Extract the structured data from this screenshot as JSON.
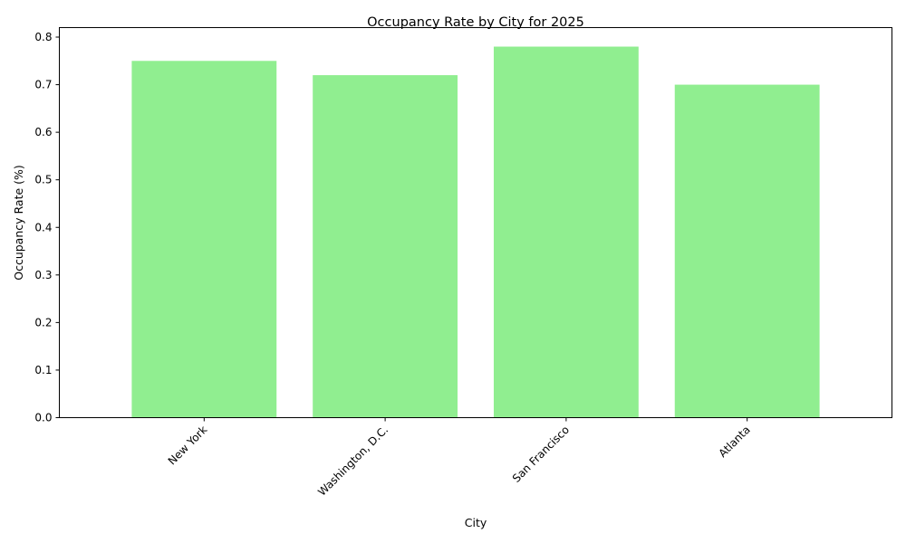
{
  "chart_data": {
    "type": "bar",
    "title": "Occupancy Rate by City for 2025",
    "xlabel": "City",
    "ylabel": "Occupancy Rate (%)",
    "categories": [
      "New York",
      "Washington, D.C.",
      "San Francisco",
      "Atlanta"
    ],
    "values": [
      0.75,
      0.72,
      0.78,
      0.7
    ],
    "ylim": [
      0,
      0.82
    ],
    "yticks": [
      0.0,
      0.1,
      0.2,
      0.3,
      0.4,
      0.5,
      0.6,
      0.7,
      0.8
    ],
    "ytick_labels": [
      "0.0",
      "0.1",
      "0.2",
      "0.3",
      "0.4",
      "0.5",
      "0.6",
      "0.7",
      "0.8"
    ],
    "bar_color": "#90ee90",
    "grid": false,
    "legend": "none"
  }
}
